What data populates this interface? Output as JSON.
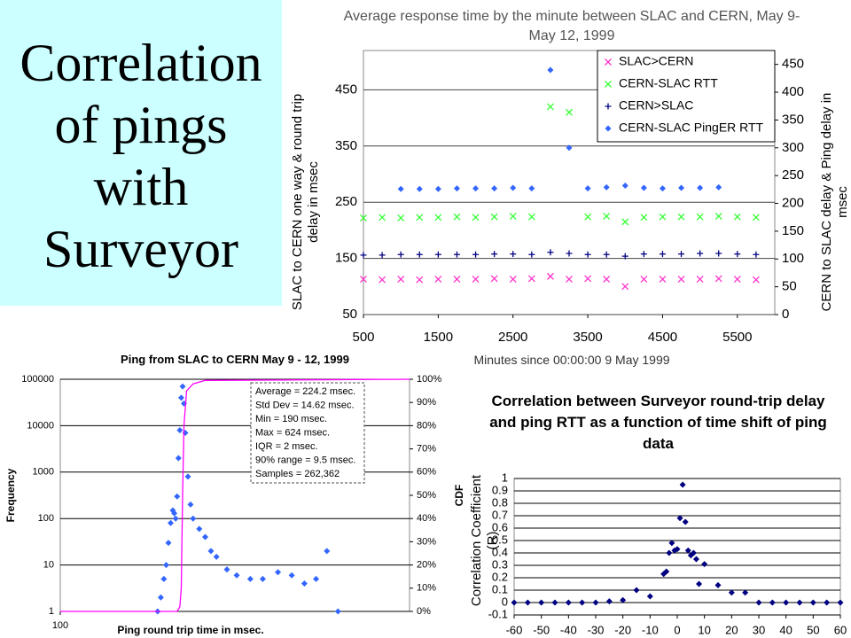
{
  "slide": {
    "title": "Correlation of pings with Surveyor"
  },
  "chart_data": [
    {
      "type": "scatter",
      "title": "Average response time by the minute between SLAC and CERN, May 9-May 12, 1999",
      "xlabel": "Minutes since 00:00:00 9 May 1999",
      "ylabel": "SLAC to CERN one way & round trip delay in msec",
      "y2label": "CERN to SLAC delay & Ping delay in msec",
      "x": [
        500,
        750,
        1000,
        1250,
        1500,
        1750,
        2000,
        2250,
        2500,
        2750,
        3000,
        3250,
        3500,
        3750,
        4000,
        4250,
        4500,
        4750,
        5000,
        5250,
        5500,
        5750
      ],
      "series": [
        {
          "name": "SLAC>CERN",
          "color": "#ff33cc",
          "marker": "x",
          "values": [
            113,
            112,
            113,
            112,
            113,
            113,
            113,
            114,
            113,
            114,
            118,
            113,
            114,
            113,
            100,
            113,
            113,
            113,
            113,
            114,
            113,
            112
          ]
        },
        {
          "name": "CERN-SLAC RTT",
          "color": "#33ff33",
          "marker": "x",
          "values": [
            222,
            223,
            222,
            223,
            223,
            224,
            223,
            224,
            225,
            224,
            420,
            410,
            224,
            225,
            215,
            223,
            224,
            224,
            224,
            225,
            224,
            223
          ]
        },
        {
          "name": "CERN>SLAC",
          "color": "#000080",
          "marker": "plus",
          "axis": "y2",
          "values": [
            107,
            107,
            108,
            108,
            108,
            108,
            108,
            109,
            109,
            108,
            112,
            110,
            108,
            108,
            105,
            109,
            109,
            109,
            110,
            110,
            109,
            108
          ]
        },
        {
          "name": "CERN-SLAC PingER RTT",
          "color": "#3366ff",
          "marker": "diamond",
          "axis": "y2",
          "values": [
            null,
            null,
            226,
            226,
            226,
            227,
            227,
            227,
            228,
            227,
            440,
            300,
            227,
            229,
            232,
            228,
            227,
            228,
            228,
            229,
            null,
            null
          ]
        }
      ],
      "xlim": [
        500,
        6000
      ],
      "xticks": [
        500,
        1500,
        2500,
        3500,
        4500,
        5500
      ],
      "ylim": [
        50,
        520
      ],
      "yticks": [
        50,
        150,
        250,
        350,
        450
      ],
      "y2lim": [
        0,
        475
      ],
      "y2ticks": [
        0,
        50,
        100,
        150,
        200,
        250,
        300,
        350,
        400,
        450
      ],
      "grid": true,
      "legend": "upper right"
    },
    {
      "type": "scatter",
      "title": "Ping from SLAC to CERN May 9 - 12, 1999",
      "xlabel": "Ping round trip time in msec.",
      "ylabel": "Frequency",
      "y2label": "CDF",
      "xlog": true,
      "ylog": true,
      "xlim": [
        100,
        1000
      ],
      "xticks": [
        100
      ],
      "ylim": [
        1,
        100000
      ],
      "yticks": [
        1,
        10,
        100,
        1000,
        10000,
        100000
      ],
      "y2lim": [
        0,
        100
      ],
      "y2ticks": [
        {
          "value": 0,
          "label": "0%"
        },
        {
          "value": 10,
          "label": "10%"
        },
        {
          "value": 20,
          "label": "20%"
        },
        {
          "value": 30,
          "label": "30%"
        },
        {
          "value": 40,
          "label": "40%"
        },
        {
          "value": 50,
          "label": "50%"
        },
        {
          "value": 60,
          "label": "60%"
        },
        {
          "value": 70,
          "label": "70%"
        },
        {
          "value": 80,
          "label": "80%"
        },
        {
          "value": 90,
          "label": "90%"
        },
        {
          "value": 100,
          "label": "100%"
        }
      ],
      "grid": true,
      "annotations": [
        "Average = 224.2 msec.",
        "Std Dev = 14.62 msec.",
        "Min = 190 msec.",
        "Max = 624 msec.",
        "IQR = 2 msec.",
        "90% range = 9.5 msec.",
        "Samples = 262,362"
      ],
      "series": [
        {
          "color": "#3366ff",
          "marker": "diamond",
          "x": [
            190,
            194,
            198,
            201,
            204,
            207,
            210,
            212,
            214,
            216,
            218,
            220,
            222,
            224,
            226,
            228,
            232,
            236,
            240,
            250,
            260,
            270,
            280,
            300,
            320,
            350,
            380,
            420,
            460,
            500,
            540,
            580,
            624
          ],
          "values": [
            1,
            2,
            5,
            10,
            30,
            80,
            150,
            130,
            100,
            300,
            2000,
            8000,
            40000,
            70000,
            30000,
            7000,
            800,
            200,
            100,
            60,
            40,
            20,
            15,
            8,
            6,
            5,
            5,
            7,
            6,
            4,
            5,
            20,
            1
          ]
        },
        {
          "color": "#ff00ff",
          "marker": "line",
          "axis": "y2",
          "x": [
            100,
            216,
            220,
            222,
            224,
            226,
            230,
            240,
            260,
            1000
          ],
          "values": [
            0,
            0,
            2,
            10,
            50,
            80,
            95,
            98,
            99.5,
            100
          ]
        }
      ]
    },
    {
      "type": "scatter",
      "title": "Correlation between Surveyor round-trip delay and ping RTT as a function of time shift of ping data",
      "ylabel": "Correlation Coefficient (R)",
      "x": [
        -60,
        -55,
        -50,
        -45,
        -40,
        -35,
        -30,
        -25,
        -20,
        -15,
        -10,
        -5,
        -4,
        -3,
        -2,
        -1,
        0,
        1,
        2,
        3,
        4,
        5,
        6,
        7,
        8,
        10,
        15,
        20,
        25,
        30,
        35,
        40,
        45,
        50,
        55,
        60
      ],
      "values": [
        0,
        0,
        0,
        0,
        0,
        0,
        0,
        0.01,
        0.02,
        0.1,
        0.05,
        0.23,
        0.25,
        0.4,
        0.48,
        0.42,
        0.43,
        0.68,
        0.95,
        0.65,
        0.42,
        0.38,
        0.4,
        0.35,
        0.15,
        0.31,
        0.14,
        0.08,
        0.08,
        0,
        0,
        0,
        0,
        0,
        0,
        0
      ],
      "color": "#000080",
      "marker": "diamond",
      "xlim": [
        -60,
        60
      ],
      "xticks": [
        -60,
        -50,
        -40,
        -30,
        -20,
        -10,
        0,
        10,
        20,
        30,
        40,
        50,
        60
      ],
      "ylim": [
        -0.1,
        1
      ],
      "yticks": [
        -0.1,
        0,
        0.1,
        0.2,
        0.3,
        0.4,
        0.5,
        0.6,
        0.7,
        0.8,
        0.9,
        1
      ],
      "grid": true
    }
  ]
}
